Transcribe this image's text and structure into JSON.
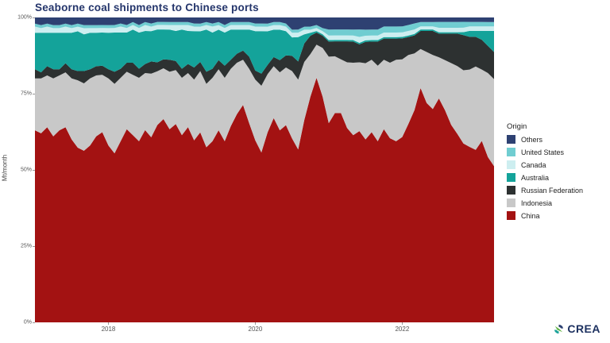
{
  "title": "Seaborne coal shipments to Chinese ports",
  "y_axis": {
    "label": "Mt/month",
    "ticks": [
      {
        "label": "100%",
        "value": 100
      },
      {
        "label": "75%",
        "value": 75
      },
      {
        "label": "50%",
        "value": 50
      },
      {
        "label": "25%",
        "value": 25
      },
      {
        "label": "0%",
        "value": 0
      }
    ]
  },
  "x_axis": {
    "ticks": [
      {
        "label": "2018",
        "month_index": 12
      },
      {
        "label": "2020",
        "month_index": 36
      },
      {
        "label": "2022",
        "month_index": 60
      }
    ]
  },
  "legend": {
    "title": "Origin",
    "items": [
      {
        "label": "Others",
        "color": "#2e4172"
      },
      {
        "label": "United States",
        "color": "#70cdd1"
      },
      {
        "label": "Canada",
        "color": "#cdeef0"
      },
      {
        "label": "Australia",
        "color": "#14a39a"
      },
      {
        "label": "Russian Federation",
        "color": "#2d3131"
      },
      {
        "label": "Indonesia",
        "color": "#c8c8c8"
      },
      {
        "label": "China",
        "color": "#a31212"
      }
    ]
  },
  "logo": {
    "text": "CREA"
  },
  "chart_data": {
    "type": "area",
    "stacking": "percent",
    "title": "Seaborne coal shipments to Chinese ports",
    "xlabel": "",
    "ylabel": "Mt/month",
    "x_start": "2017-01",
    "x_end": "2023-04",
    "x_unit": "month",
    "ylim": [
      0,
      100
    ],
    "grid": false,
    "legend_position": "right",
    "series_order": "bottom-to-top",
    "series": [
      {
        "name": "China",
        "color": "#a31212",
        "values": [
          63,
          62,
          64,
          61,
          63,
          64,
          60,
          57,
          56,
          58,
          61,
          63,
          58,
          56,
          60,
          64,
          62,
          60,
          64,
          61,
          66,
          68,
          64,
          66,
          62,
          65,
          60,
          62,
          58,
          60,
          63,
          60,
          65,
          69,
          72,
          66,
          60,
          56,
          62,
          67,
          63,
          65,
          60,
          57,
          66,
          74,
          81,
          74,
          66,
          70,
          70,
          65,
          62,
          64,
          60,
          63,
          60,
          64,
          61,
          60,
          62,
          66,
          71,
          78,
          73,
          71,
          76,
          72,
          67,
          64,
          61,
          59,
          58,
          61,
          55,
          52
        ]
      },
      {
        "name": "Indonesia",
        "color": "#c8c8c8",
        "values": [
          17,
          18,
          17,
          19,
          18,
          18,
          20,
          22,
          22,
          22,
          20,
          19,
          22,
          23,
          21,
          19,
          20,
          21,
          19,
          21,
          18,
          17,
          19,
          18,
          19,
          18,
          20,
          20,
          21,
          21,
          20,
          21,
          19,
          17,
          15,
          18,
          20,
          22,
          19,
          17,
          19,
          19,
          22,
          23,
          19,
          14,
          11,
          16,
          22,
          19,
          18,
          22,
          24,
          23,
          25,
          24,
          25,
          23,
          25,
          27,
          26,
          23,
          19,
          13,
          17,
          18,
          14,
          17,
          21,
          23,
          25,
          26,
          28,
          24,
          28,
          29
        ]
      },
      {
        "name": "Russian Federation",
        "color": "#2d3131",
        "values": [
          3,
          2,
          3,
          3,
          2,
          3,
          3,
          3,
          4,
          3,
          3,
          3,
          3,
          4,
          3,
          3,
          4,
          3,
          3,
          4,
          3,
          3,
          4,
          3,
          3,
          3,
          4,
          3,
          4,
          3,
          3,
          4,
          3,
          3,
          3,
          4,
          3,
          4,
          3,
          3,
          4,
          4,
          5,
          6,
          6,
          6,
          4,
          4,
          5,
          5,
          6,
          7,
          7,
          6,
          7,
          6,
          8,
          7,
          8,
          7,
          7,
          6,
          6,
          6,
          7,
          8,
          8,
          9,
          10,
          11,
          12,
          11,
          10,
          10,
          9,
          9
        ]
      },
      {
        "name": "Australia",
        "color": "#14a39a",
        "values": [
          12,
          13,
          11,
          12,
          12,
          10,
          12,
          13,
          12,
          12,
          11,
          11,
          12,
          13,
          12,
          10,
          11,
          12,
          11,
          10,
          11,
          10,
          10,
          10,
          13,
          11,
          12,
          10,
          14,
          12,
          10,
          11,
          10,
          8,
          7,
          9,
          13,
          14,
          11,
          9,
          10,
          8,
          6,
          8,
          3,
          1,
          0.5,
          0.5,
          0.5,
          0.5,
          0.5,
          0.5,
          0.5,
          0.5,
          0.5,
          0.5,
          0.5,
          0.5,
          0.5,
          0.5,
          0.5,
          0.5,
          0.5,
          0.5,
          0.5,
          0.5,
          0.5,
          0.5,
          0.5,
          0.5,
          1,
          2,
          2,
          3,
          5,
          7
        ]
      },
      {
        "name": "Canada",
        "color": "#cdeef0",
        "values": [
          2,
          1.5,
          2,
          1.5,
          1.5,
          2,
          1.5,
          1.5,
          2,
          1.5,
          1.5,
          1.5,
          1.5,
          1.5,
          2,
          1.5,
          1.5,
          1.5,
          2,
          1.5,
          1.5,
          1.5,
          1.5,
          2,
          1.5,
          2,
          1.5,
          1.5,
          1.5,
          2,
          1.5,
          1.5,
          1.5,
          1.5,
          1.5,
          1.5,
          1.5,
          1.5,
          1.5,
          1.5,
          1.5,
          1.5,
          1.5,
          1.5,
          1.5,
          1,
          1,
          1,
          1.5,
          1.5,
          1.5,
          1.5,
          1.5,
          2,
          1.5,
          1.5,
          1.5,
          1.5,
          1.5,
          1.5,
          1.5,
          1.5,
          1.5,
          1,
          1,
          1,
          1.5,
          1.5,
          1.5,
          1.5,
          1.5,
          1.5,
          1.5,
          1.5,
          1.5,
          1.5
        ]
      },
      {
        "name": "United States",
        "color": "#70cdd1",
        "values": [
          1,
          1,
          1,
          1,
          1,
          1,
          1,
          1,
          1,
          1,
          1,
          1,
          1,
          1,
          1,
          1,
          1,
          1,
          1,
          1,
          1,
          1,
          1,
          1,
          1,
          1,
          1,
          1,
          1,
          1,
          1,
          1,
          1,
          1,
          1,
          1,
          1,
          1,
          1,
          1,
          1,
          1,
          1,
          1,
          1,
          1,
          1,
          1,
          2,
          2,
          2,
          2,
          2,
          2.5,
          2,
          2,
          2,
          2,
          2,
          2,
          2,
          2,
          2,
          1.5,
          1.5,
          1.5,
          2,
          2,
          2,
          2,
          2,
          1.5,
          1.5,
          1.5,
          1.5,
          1.5
        ]
      },
      {
        "name": "Others",
        "color": "#2e4172",
        "values": [
          2,
          2.5,
          2,
          2.5,
          2.5,
          2,
          2.5,
          2,
          2.5,
          2.5,
          2.5,
          2.5,
          2.5,
          2.5,
          2,
          2.5,
          1.5,
          2.5,
          1.5,
          2,
          1.5,
          1.5,
          1.5,
          1.5,
          1.5,
          1.5,
          2,
          2,
          1.5,
          2,
          1.5,
          2.5,
          1.5,
          1.5,
          1.5,
          1.5,
          2,
          2,
          2,
          1.5,
          1.5,
          2,
          4,
          4,
          3,
          3,
          2.5,
          3.5,
          4,
          4,
          4,
          4,
          4,
          4,
          4,
          4,
          4,
          3,
          3,
          3,
          3,
          2.5,
          2,
          1.5,
          1.5,
          1.5,
          1.5,
          1.5,
          1.5,
          1.5,
          1.5,
          1.5,
          1.5,
          1.5,
          1.5,
          1.5
        ]
      }
    ]
  }
}
